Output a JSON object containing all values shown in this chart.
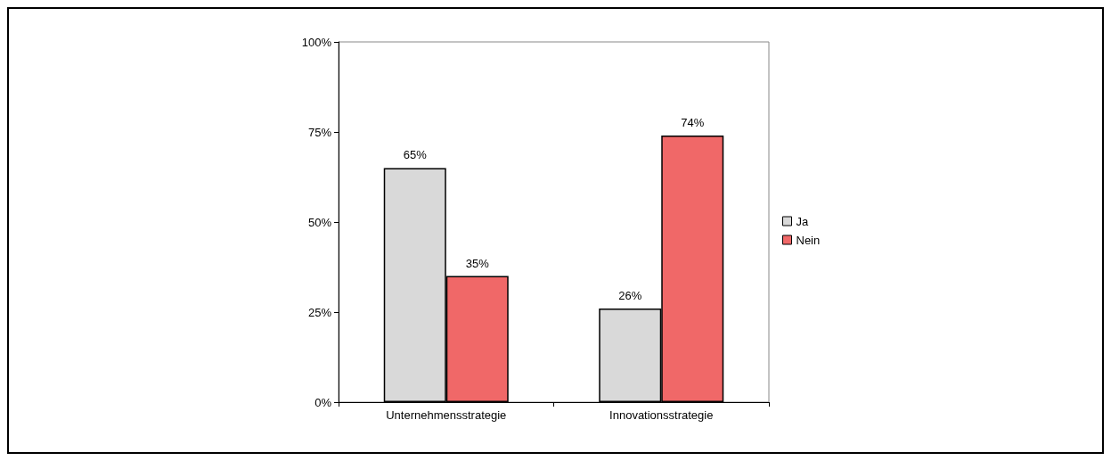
{
  "chart_data": {
    "type": "bar",
    "categories": [
      "Unternehmensstrategie",
      "Innovationsstrategie"
    ],
    "series": [
      {
        "name": "Ja",
        "color": "#d9d9d9",
        "values": [
          65,
          26
        ],
        "value_labels": [
          "65%",
          "26%"
        ]
      },
      {
        "name": "Nein",
        "color": "#f06868",
        "values": [
          35,
          74
        ],
        "value_labels": [
          "35%",
          "74%"
        ]
      }
    ],
    "ylim": [
      0,
      100
    ],
    "yticks": [
      {
        "value": 0,
        "label": "0%"
      },
      {
        "value": 25,
        "label": "25%"
      },
      {
        "value": 50,
        "label": "50%"
      },
      {
        "value": 75,
        "label": "75%"
      },
      {
        "value": 100,
        "label": "100%"
      }
    ],
    "grid": false,
    "legend": "right"
  }
}
